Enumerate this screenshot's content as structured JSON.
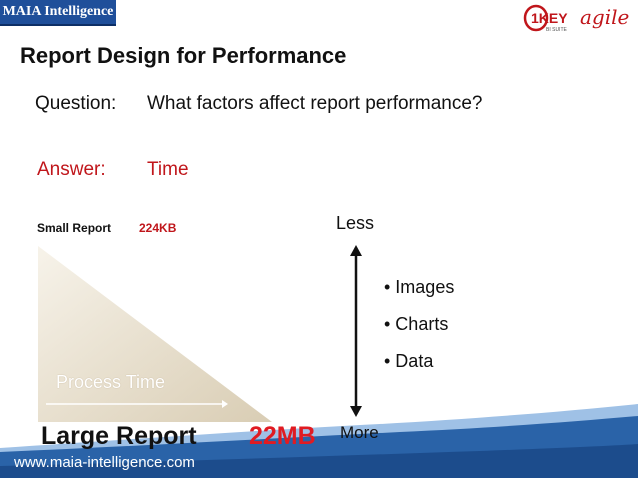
{
  "brand": {
    "name": "MAIA Intelligence"
  },
  "logo": {
    "main": "1KEY",
    "sub": "BI SUITE",
    "script": "agile"
  },
  "slide": {
    "title": "Report Design for Performance",
    "question_label": "Question:",
    "question": "What factors affect report performance?",
    "answer_label": "Answer:",
    "answer": "Time",
    "small_report_label": "Small Report",
    "small_report_size": "224KB",
    "process_time_label": "Process Time",
    "large_report_label": "Large Report",
    "large_report_size": "22MB",
    "less_label": "Less",
    "more_label": "More",
    "factors": [
      "• Images",
      "• Charts",
      "• Data"
    ]
  },
  "footer": {
    "url": "www.maia-intelligence.com"
  },
  "colors": {
    "brand_blue": "#1f4f9a",
    "accent_red": "#c0161b",
    "footer_blue": "#2a63a8"
  }
}
